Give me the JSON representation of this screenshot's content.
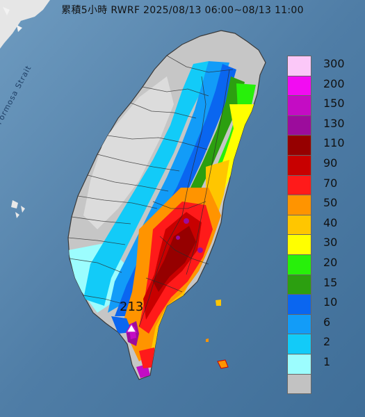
{
  "title": "累積5小時 RWRF 2025/08/13 06:00~08/13 11:00",
  "strait_label": "Formosa Strait",
  "peak_value": "213",
  "legend": [
    {
      "label": "300",
      "color": "#fbc8f8"
    },
    {
      "label": "200",
      "color": "#f20cf2"
    },
    {
      "label": "150",
      "color": "#c40cc4"
    },
    {
      "label": "130",
      "color": "#9c0c9c"
    },
    {
      "label": "110",
      "color": "#960000"
    },
    {
      "label": "90",
      "color": "#c80000"
    },
    {
      "label": "70",
      "color": "#ff1a1a"
    },
    {
      "label": "50",
      "color": "#ff9400"
    },
    {
      "label": "40",
      "color": "#ffc600"
    },
    {
      "label": "30",
      "color": "#ffff00"
    },
    {
      "label": "20",
      "color": "#27f00a"
    },
    {
      "label": "15",
      "color": "#2c9f10"
    },
    {
      "label": "10",
      "color": "#0a66f0"
    },
    {
      "label": "6",
      "color": "#129cf8"
    },
    {
      "label": "2",
      "color": "#12cbf8"
    },
    {
      "label": "1",
      "color": "#9cfdfe"
    },
    {
      "label": "",
      "color": "#c2c2c2"
    }
  ]
}
